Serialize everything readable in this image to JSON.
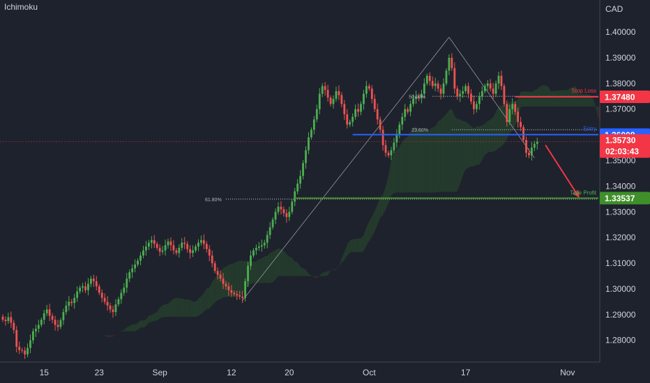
{
  "indicator_label": "Ichimoku",
  "currency": "CAD",
  "colors": {
    "background": "#1e222d",
    "up": "#4caf50",
    "down": "#ef5350",
    "cloud_green": "#243a2c",
    "cloud_red": "#3a262c",
    "stop_loss": "#f23645",
    "entry": "#2962ff",
    "take_profit": "#3f8f2a",
    "price": "#f23645",
    "grid_text": "#d1d4dc"
  },
  "annotations": {
    "stop_loss_label": "Stop Loss",
    "entry_label": "Entry",
    "take_profit_label": "Take Profit",
    "fib_50": "50.00%",
    "fib_236": "23.60%",
    "fib_618": "61.80%"
  },
  "badges": {
    "stop_loss": "1.37480",
    "entry": "1.36008",
    "last_price": "1.35730",
    "countdown": "02:03:43",
    "take_profit": "1.33537"
  },
  "chart_data": {
    "type": "candlestick",
    "title": "",
    "xlabel": "",
    "ylabel": "CAD",
    "ylim": [
      1.2715,
      1.4125
    ],
    "y_ticks": [
      "1.40000",
      "1.39000",
      "1.38000",
      "1.37000",
      "1.36000",
      "1.35000",
      "1.34000",
      "1.33000",
      "1.32000",
      "1.31000",
      "1.30000",
      "1.29000",
      "1.28000"
    ],
    "y_tick_values": [
      1.4,
      1.39,
      1.38,
      1.37,
      1.36,
      1.35,
      1.34,
      1.33,
      1.32,
      1.31,
      1.3,
      1.29,
      1.28
    ],
    "x_ticks": [
      "15",
      "23",
      "Sep",
      "12",
      "20",
      "Oct",
      "17",
      "Nov"
    ],
    "x_tick_index": [
      15,
      35,
      57,
      83,
      104,
      133,
      168,
      205
    ],
    "levels": {
      "stop_loss": 1.3748,
      "entry": 1.36008,
      "last_price": 1.3573,
      "take_profit": 1.33537,
      "fib_50": 1.375,
      "fib_236": 1.362,
      "fib_618": 1.335
    },
    "fib_swing": {
      "low": {
        "index": 87,
        "price": 1.2955
      },
      "high": {
        "index": 162,
        "price": 1.398
      },
      "end": {
        "index": 193,
        "price": 1.351
      }
    },
    "projection": {
      "from_index": 197,
      "from_price": 1.356,
      "to_index": 209,
      "to_price": 1.336
    },
    "close": [
      1.288,
      1.2875,
      1.289,
      1.2868,
      1.284,
      1.2775,
      1.2762,
      1.276,
      1.2745,
      1.277,
      1.28,
      1.2835,
      1.2845,
      1.286,
      1.288,
      1.2905,
      1.292,
      1.2895,
      1.288,
      1.286,
      1.2852,
      1.2878,
      1.291,
      1.2935,
      1.295,
      1.2945,
      1.2965,
      1.299,
      1.3005,
      1.301,
      1.2995,
      1.302,
      1.304,
      1.303,
      1.301,
      1.2985,
      1.2965,
      1.295,
      1.2935,
      1.292,
      1.291,
      1.294,
      1.296,
      1.2985,
      1.3005,
      1.304,
      1.3065,
      1.308,
      1.3095,
      1.311,
      1.313,
      1.315,
      1.3165,
      1.318,
      1.319,
      1.3175,
      1.316,
      1.3145,
      1.315,
      1.317,
      1.3185,
      1.317,
      1.315,
      1.314,
      1.316,
      1.318,
      1.3175,
      1.3155,
      1.314,
      1.315,
      1.3165,
      1.318,
      1.319,
      1.3175,
      1.3155,
      1.313,
      1.31,
      1.307,
      1.3055,
      1.304,
      1.302,
      1.301,
      1.2995,
      1.2985,
      1.298,
      1.2975,
      1.297,
      1.2965,
      1.303,
      1.309,
      1.313,
      1.315,
      1.316,
      1.3165,
      1.317,
      1.318,
      1.321,
      1.324,
      1.327,
      1.33,
      1.332,
      1.331,
      1.3295,
      1.328,
      1.33,
      1.334,
      1.338,
      1.341,
      1.344,
      1.349,
      1.354,
      1.359,
      1.362,
      1.366,
      1.37,
      1.376,
      1.379,
      1.3775,
      1.3745,
      1.372,
      1.374,
      1.377,
      1.3755,
      1.372,
      1.368,
      1.364,
      1.365,
      1.367,
      1.37,
      1.369,
      1.372,
      1.376,
      1.379,
      1.378,
      1.374,
      1.37,
      1.366,
      1.362,
      1.356,
      1.353,
      1.352,
      1.354,
      1.357,
      1.36,
      1.364,
      1.367,
      1.37,
      1.369,
      1.372,
      1.374,
      1.375,
      1.3745,
      1.376,
      1.38,
      1.383,
      1.381,
      1.379,
      1.38,
      1.378,
      1.376,
      1.38,
      1.385,
      1.39,
      1.386,
      1.378,
      1.375,
      1.376,
      1.377,
      1.379,
      1.376,
      1.373,
      1.37,
      1.372,
      1.375,
      1.377,
      1.379,
      1.38,
      1.378,
      1.376,
      1.38,
      1.383,
      1.379,
      1.372,
      1.365,
      1.37,
      1.372,
      1.369,
      1.365,
      1.363,
      1.358,
      1.353,
      1.352,
      1.355,
      1.3565,
      1.3573
    ]
  }
}
